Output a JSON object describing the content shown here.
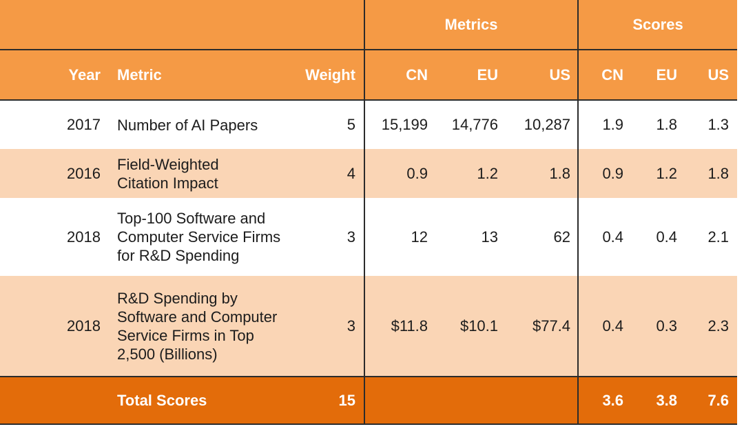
{
  "header": {
    "group_metrics": "Metrics",
    "group_scores": "Scores",
    "col_year": "Year",
    "col_metric": "Metric",
    "col_weight": "Weight",
    "col_cn": "CN",
    "col_eu": "EU",
    "col_us": "US",
    "col_score_cn": "CN",
    "col_score_eu": "EU",
    "col_score_us": "US"
  },
  "rows": [
    {
      "year": "2017",
      "metric_lines": [
        "Number of AI Papers"
      ],
      "weight": "5",
      "cn": "15,199",
      "eu": "14,776",
      "us": "10,287",
      "s_cn": "1.9",
      "s_eu": "1.8",
      "s_us": "1.3"
    },
    {
      "year": "2016",
      "metric_lines": [
        "Field-Weighted",
        "Citation Impact"
      ],
      "weight": "4",
      "cn": "0.9",
      "eu": "1.2",
      "us": "1.8",
      "s_cn": "0.9",
      "s_eu": "1.2",
      "s_us": "1.8"
    },
    {
      "year": "2018",
      "metric_lines": [
        "Top-100 Software and",
        "Computer Service Firms",
        "for R&D Spending"
      ],
      "weight": "3",
      "cn": "12",
      "eu": "13",
      "us": "62",
      "s_cn": "0.4",
      "s_eu": "0.4",
      "s_us": "2.1"
    },
    {
      "year": "2018",
      "metric_lines": [
        "R&D Spending by",
        "Software and Computer",
        "Service Firms in Top",
        "2,500 (Billions)"
      ],
      "weight": "3",
      "cn": "$11.8",
      "eu": "$10.1",
      "us": "$77.4",
      "s_cn": "0.4",
      "s_eu": "0.3",
      "s_us": "2.3"
    }
  ],
  "total": {
    "label": "Total Scores",
    "weight": "15",
    "s_cn": "3.6",
    "s_eu": "3.8",
    "s_us": "7.6"
  },
  "colors": {
    "header_orange": "#f59a45",
    "total_orange": "#e36c0a",
    "row_tint": "#fad5b5"
  }
}
